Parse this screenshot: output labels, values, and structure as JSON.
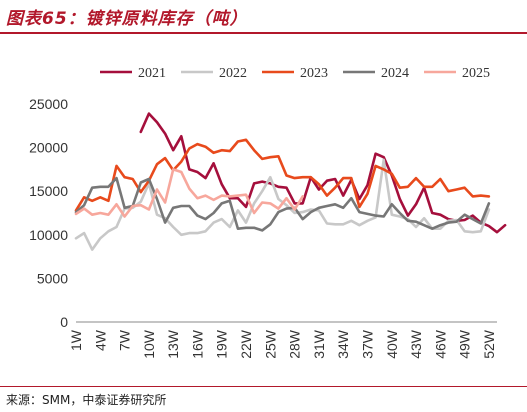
{
  "figure": {
    "title": "图表65：镀锌原料库存（吨）",
    "source": "来源：SMM，中泰证券研究所"
  },
  "chart_data": {
    "type": "line",
    "title": "",
    "xlabel": "",
    "ylabel": "",
    "ylim": [
      0,
      25000
    ],
    "yticks": [
      0,
      5000,
      10000,
      15000,
      20000,
      25000
    ],
    "x_tick_labels": [
      "1W",
      "4W",
      "7W",
      "10W",
      "13W",
      "16W",
      "19W",
      "22W",
      "25W",
      "28W",
      "31W",
      "34W",
      "37W",
      "40W",
      "43W",
      "46W",
      "49W",
      "52W"
    ],
    "x_tick_weeks": [
      1,
      4,
      7,
      10,
      13,
      16,
      19,
      22,
      25,
      28,
      31,
      34,
      37,
      40,
      43,
      46,
      49,
      52
    ],
    "x_range": [
      1,
      53
    ],
    "grid": false,
    "legend_position": "top",
    "series": [
      {
        "name": "2021",
        "color": "#a50f3c",
        "start_week": 9,
        "values": [
          21800,
          23900,
          22900,
          21600,
          19700,
          21300,
          17500,
          17200,
          16500,
          18200,
          15800,
          14200,
          14200,
          13200,
          15900,
          16100,
          15900,
          15500,
          15400,
          13600,
          13600,
          16600,
          15200,
          16200,
          16400,
          14500,
          16300,
          14100,
          15700,
          19300,
          18900,
          16800,
          14100,
          12200,
          13500,
          15400,
          12500,
          12300,
          11800,
          11600,
          11700,
          12200,
          11400,
          11000,
          10300,
          11100
        ]
      },
      {
        "name": "2022",
        "color": "#c8c8c8",
        "start_week": 1,
        "values": [
          9600,
          10200,
          8300,
          9600,
          10400,
          10900,
          13000,
          13100,
          13800,
          15900,
          12300,
          11900,
          10900,
          10000,
          10200,
          10200,
          10400,
          11400,
          11800,
          10900,
          12800,
          11400,
          13600,
          15000,
          16600,
          14100,
          13400,
          12500,
          12600,
          12900,
          12800,
          11300,
          11200,
          11200,
          11600,
          11100,
          11600,
          12000,
          18600,
          12300,
          12100,
          11800,
          10900,
          11900,
          10700,
          10700,
          11600,
          11700,
          10400,
          10300,
          10400,
          12900
        ]
      },
      {
        "name": "2023",
        "color": "#e84a1c",
        "start_week": 1,
        "values": [
          12800,
          14300,
          13900,
          14300,
          13900,
          17900,
          16600,
          16400,
          14900,
          16200,
          18100,
          18800,
          17400,
          18400,
          19900,
          20400,
          20100,
          19400,
          19700,
          19600,
          20700,
          20900,
          19700,
          18700,
          18900,
          19000,
          16800,
          16500,
          16600,
          16600,
          15800,
          14500,
          15400,
          16500,
          16500,
          13200,
          14700,
          17900,
          17500,
          17000,
          15400,
          15500,
          16500,
          15500,
          15500,
          16400,
          15000,
          15200,
          15400,
          14400,
          14500,
          14400
        ]
      },
      {
        "name": "2024",
        "color": "#777777",
        "start_week": 1,
        "values": [
          12600,
          13400,
          15400,
          15500,
          15500,
          16500,
          13100,
          13300,
          16000,
          16400,
          14100,
          11400,
          13100,
          13300,
          13300,
          12200,
          11800,
          12500,
          13600,
          13900,
          10700,
          10800,
          10800,
          10500,
          11200,
          12600,
          13000,
          13100,
          11800,
          12600,
          13100,
          13300,
          13500,
          13100,
          14200,
          12600,
          12400,
          12200,
          12100,
          13500,
          12500,
          11600,
          11500,
          11100,
          10700,
          11100,
          11400,
          11500,
          12300,
          11800,
          11300,
          13600
        ]
      },
      {
        "name": "2025",
        "color": "#f7a79c",
        "start_week": 1,
        "values": [
          12400,
          13000,
          12300,
          12500,
          12300,
          13500,
          12100,
          13300,
          13400,
          12900,
          15200,
          13700,
          17500,
          17200,
          15300,
          14200,
          14500,
          14000,
          14500,
          14400,
          14500,
          14600,
          12500,
          13700,
          13600,
          13000,
          14200,
          12900,
          14400
        ]
      }
    ]
  }
}
